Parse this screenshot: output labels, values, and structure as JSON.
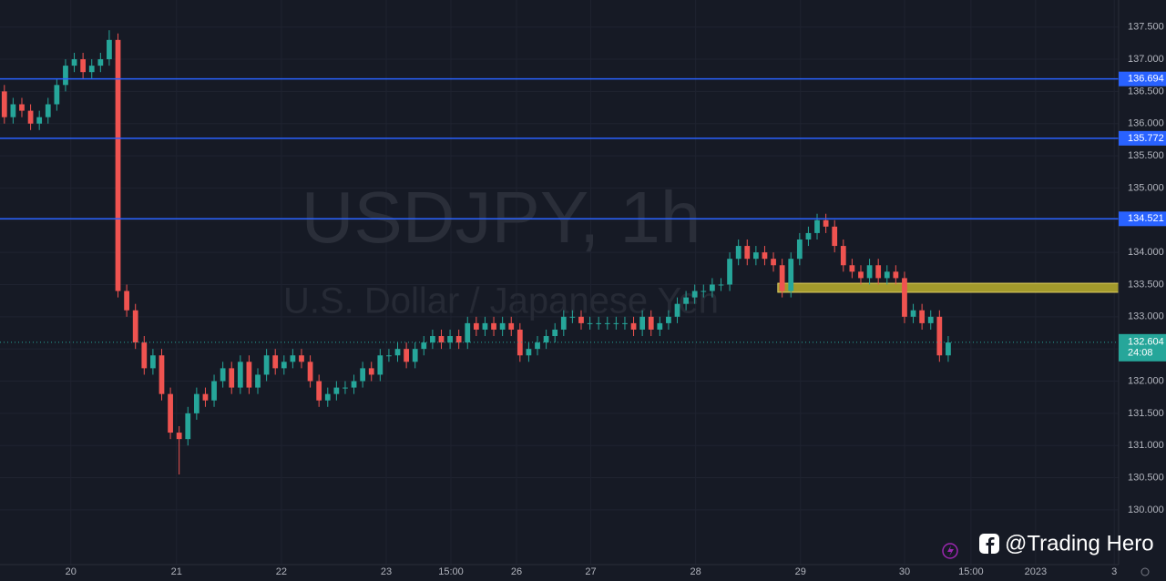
{
  "chart_data": {
    "type": "candlestick",
    "watermark_title": "USDJPY, 1h",
    "watermark_subtitle": "U.S. Dollar / Japanese Yen",
    "credit": "@Trading Hero",
    "countdown": "24:08",
    "up_color": "#26a69a",
    "down_color": "#ef5350",
    "line_color": "#2962ff",
    "zone_color": "#a39a2c",
    "grid": true,
    "xlim": [
      0,
      128
    ],
    "xticks": [
      {
        "value": 8.1,
        "label": "20"
      },
      {
        "value": 20.2,
        "label": "21"
      },
      {
        "value": 32.2,
        "label": "22"
      },
      {
        "value": 44.2,
        "label": "23"
      },
      {
        "value": 51.6,
        "label": "15:00"
      },
      {
        "value": 59.1,
        "label": "26"
      },
      {
        "value": 67.6,
        "label": "27"
      },
      {
        "value": 79.6,
        "label": "28"
      },
      {
        "value": 91.6,
        "label": "29"
      },
      {
        "value": 103.5,
        "label": "30"
      },
      {
        "value": 111.1,
        "label": "15:00"
      },
      {
        "value": 118.5,
        "label": "2023"
      },
      {
        "value": 127.5,
        "label": "3"
      }
    ],
    "ylim": [
      129.15,
      137.92
    ],
    "yticks": [
      {
        "value": 130,
        "label": "130.000"
      },
      {
        "value": 130.5,
        "label": "130.500"
      },
      {
        "value": 131,
        "label": "131.000"
      },
      {
        "value": 131.5,
        "label": "131.500"
      },
      {
        "value": 132,
        "label": "132.000"
      },
      {
        "value": 132.5,
        "label": "132.500"
      },
      {
        "value": 133,
        "label": "133.000"
      },
      {
        "value": 133.5,
        "label": "133.500"
      },
      {
        "value": 134,
        "label": "134.000"
      },
      {
        "value": 134.5,
        "label": "134.500"
      },
      {
        "value": 135,
        "label": "135.000"
      },
      {
        "value": 135.5,
        "label": "135.500"
      },
      {
        "value": 136,
        "label": "136.000"
      },
      {
        "value": 136.5,
        "label": "136.500"
      },
      {
        "value": 137,
        "label": "137.000"
      },
      {
        "value": 137.5,
        "label": "137.500"
      }
    ],
    "levels": [
      136.694,
      135.772,
      134.521
    ],
    "current_price": 132.604,
    "zone": {
      "low": 133.38,
      "high": 133.52,
      "start": 89
    },
    "open": [
      136.5,
      136.1,
      136.3,
      136.2,
      136.0,
      136.1,
      136.3,
      136.6,
      136.9,
      137.0,
      136.8,
      136.9,
      137.0,
      137.3,
      133.4,
      133.1,
      132.6,
      132.2,
      132.4,
      131.8,
      131.2,
      131.1,
      131.5,
      131.8,
      131.7,
      132.0,
      132.2,
      131.9,
      132.3,
      131.9,
      132.1,
      132.4,
      132.2,
      132.3,
      132.4,
      132.3,
      132.0,
      131.7,
      131.8,
      131.9,
      131.9,
      132.0,
      132.2,
      132.1,
      132.4,
      132.4,
      132.5,
      132.3,
      132.5,
      132.6,
      132.7,
      132.6,
      132.7,
      132.6,
      132.9,
      132.8,
      132.9,
      132.8,
      132.9,
      132.8,
      132.4,
      132.5,
      132.6,
      132.7,
      132.8,
      133.0,
      133.0,
      132.9,
      132.9,
      132.9,
      132.9,
      132.9,
      132.9,
      132.8,
      133.0,
      132.8,
      132.9,
      133.0,
      133.2,
      133.3,
      133.4,
      133.4,
      133.5,
      133.5,
      133.9,
      134.1,
      133.9,
      134.0,
      133.9,
      133.8,
      133.4,
      133.9,
      134.2,
      134.3,
      134.5,
      134.4,
      134.1,
      133.8,
      133.7,
      133.6,
      133.8,
      133.6,
      133.7,
      133.6,
      133.0,
      133.1,
      132.9,
      133.0,
      132.4
    ],
    "high": [
      136.6,
      136.4,
      136.4,
      136.3,
      136.2,
      136.4,
      136.7,
      137.0,
      137.1,
      137.1,
      137.0,
      137.1,
      137.45,
      137.4,
      133.5,
      133.2,
      132.7,
      132.5,
      132.5,
      131.9,
      131.3,
      131.6,
      131.9,
      131.9,
      132.1,
      132.3,
      132.3,
      132.4,
      132.4,
      132.2,
      132.5,
      132.5,
      132.4,
      132.5,
      132.5,
      132.4,
      132.1,
      131.9,
      132.0,
      132.0,
      132.1,
      132.3,
      132.3,
      132.5,
      132.5,
      132.6,
      132.6,
      132.6,
      132.7,
      132.8,
      132.8,
      132.8,
      132.8,
      133.0,
      133.0,
      133.0,
      133.0,
      133.0,
      133.0,
      132.9,
      132.6,
      132.7,
      132.8,
      132.9,
      133.1,
      133.1,
      133.1,
      133.0,
      133.0,
      133.0,
      133.0,
      133.0,
      133.0,
      133.1,
      133.1,
      133.0,
      133.1,
      133.3,
      133.4,
      133.5,
      133.5,
      133.6,
      133.6,
      134.0,
      134.2,
      134.2,
      134.1,
      134.1,
      134.0,
      133.9,
      134.0,
      134.3,
      134.4,
      134.6,
      134.6,
      134.5,
      134.2,
      133.9,
      133.8,
      133.9,
      133.9,
      133.8,
      133.8,
      133.7,
      133.2,
      133.2,
      133.1,
      133.1,
      132.7
    ],
    "low": [
      136.0,
      136.0,
      136.1,
      135.9,
      135.9,
      136.0,
      136.2,
      136.5,
      136.8,
      136.7,
      136.7,
      136.8,
      136.9,
      133.3,
      133.0,
      132.5,
      132.1,
      132.1,
      131.7,
      131.1,
      130.55,
      131.0,
      131.4,
      131.6,
      131.6,
      131.9,
      131.8,
      131.8,
      131.8,
      131.8,
      132.0,
      132.1,
      132.1,
      132.2,
      132.2,
      131.9,
      131.6,
      131.6,
      131.7,
      131.8,
      131.8,
      131.9,
      132.0,
      132.0,
      132.3,
      132.3,
      132.2,
      132.2,
      132.4,
      132.5,
      132.5,
      132.5,
      132.5,
      132.5,
      132.7,
      132.7,
      132.7,
      132.7,
      132.7,
      132.3,
      132.3,
      132.4,
      132.5,
      132.6,
      132.7,
      132.9,
      132.8,
      132.8,
      132.8,
      132.8,
      132.8,
      132.8,
      132.7,
      132.7,
      132.7,
      132.7,
      132.8,
      132.9,
      133.1,
      133.2,
      133.3,
      133.3,
      133.4,
      133.4,
      133.8,
      133.8,
      133.8,
      133.8,
      133.7,
      133.3,
      133.3,
      133.8,
      134.1,
      134.2,
      134.3,
      134.0,
      133.7,
      133.6,
      133.5,
      133.5,
      133.5,
      133.5,
      133.5,
      132.9,
      132.9,
      132.8,
      132.8,
      132.3,
      132.3
    ],
    "close": [
      136.1,
      136.3,
      136.2,
      136.0,
      136.1,
      136.3,
      136.6,
      136.9,
      137.0,
      136.8,
      136.9,
      137.0,
      137.3,
      133.4,
      133.1,
      132.6,
      132.2,
      132.4,
      131.8,
      131.2,
      131.1,
      131.5,
      131.8,
      131.7,
      132.0,
      132.2,
      131.9,
      132.3,
      131.9,
      132.1,
      132.4,
      132.2,
      132.3,
      132.4,
      132.3,
      132.0,
      131.7,
      131.8,
      131.9,
      131.9,
      132.0,
      132.2,
      132.1,
      132.4,
      132.4,
      132.5,
      132.3,
      132.5,
      132.6,
      132.7,
      132.6,
      132.7,
      132.6,
      132.9,
      132.8,
      132.9,
      132.8,
      132.9,
      132.8,
      132.4,
      132.5,
      132.6,
      132.7,
      132.8,
      133.0,
      133.0,
      132.9,
      132.9,
      132.9,
      132.9,
      132.9,
      132.9,
      132.8,
      133.0,
      132.8,
      132.9,
      133.0,
      133.2,
      133.3,
      133.4,
      133.4,
      133.5,
      133.5,
      133.9,
      134.1,
      133.9,
      134.0,
      133.9,
      133.8,
      133.4,
      133.9,
      134.2,
      134.3,
      134.5,
      134.4,
      134.1,
      133.8,
      133.7,
      133.6,
      133.8,
      133.6,
      133.7,
      133.6,
      133.0,
      133.1,
      132.9,
      133.0,
      132.4,
      132.6
    ]
  }
}
